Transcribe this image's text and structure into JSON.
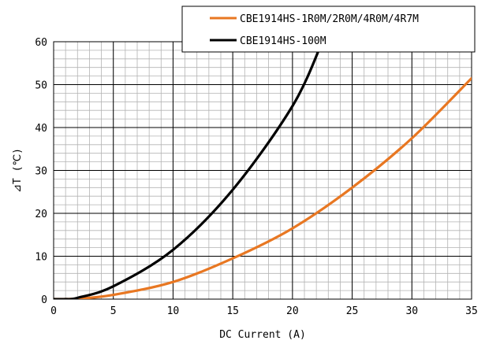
{
  "chart_data": {
    "type": "line",
    "title": "",
    "xlabel": "DC Current (A)",
    "ylabel": "⊿T (℃)",
    "xlim": [
      0,
      35
    ],
    "ylim": [
      0,
      60
    ],
    "x_ticks": [
      0,
      5,
      10,
      15,
      20,
      25,
      30,
      35
    ],
    "y_ticks": [
      0,
      10,
      20,
      30,
      40,
      50,
      60
    ],
    "grid": true,
    "legend_position": "top-right",
    "series": [
      {
        "name": "CBE1914HS-1R0M/2R0M/4R0M/4R7M",
        "color": "#E87722",
        "points": [
          [
            0,
            0
          ],
          [
            2,
            0.1
          ],
          [
            5,
            1
          ],
          [
            10,
            4
          ],
          [
            15,
            9.5
          ],
          [
            20,
            16.5
          ],
          [
            25,
            26
          ],
          [
            30,
            37.5
          ],
          [
            35,
            51.5
          ]
        ]
      },
      {
        "name": "CBE1914HS-100M",
        "color": "#000000",
        "points": [
          [
            0,
            0
          ],
          [
            1,
            0
          ],
          [
            2,
            0.3
          ],
          [
            5,
            3
          ],
          [
            10,
            11.5
          ],
          [
            15,
            25.5
          ],
          [
            20,
            45
          ],
          [
            22.5,
            60
          ]
        ]
      }
    ]
  }
}
